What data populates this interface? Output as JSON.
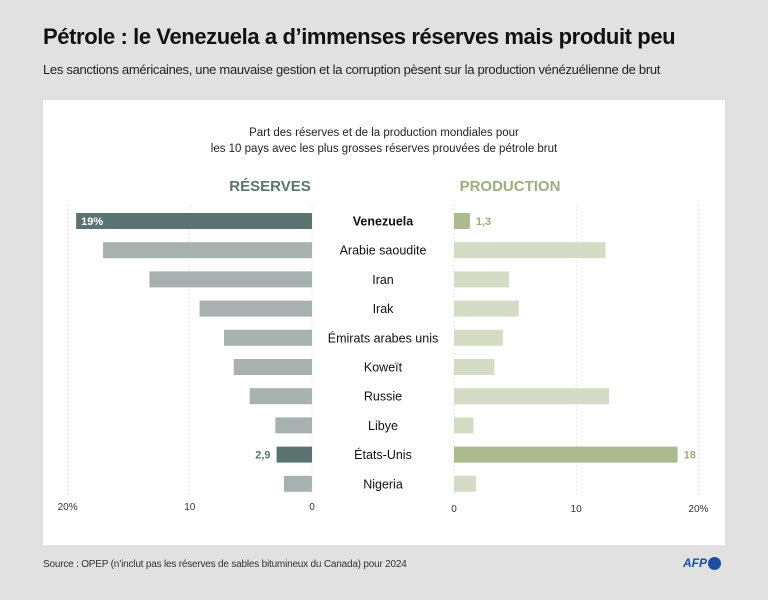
{
  "header": {
    "title": "Pétrole : le Venezuela a d’immenses réserves mais produit peu",
    "subtitle": "Les sanctions américaines, une mauvaise gestion et la corruption pèsent sur la production vénézuélienne de brut"
  },
  "footer": {
    "source": "Source : OPEP (n’inclut pas les réserves de sables bitumineux du Canada)  pour 2024",
    "logo": "AFP"
  },
  "colors": {
    "reserves_highlight": "#5b7471",
    "reserves_bar": "#a7b1af",
    "production_highlight": "#aabb90",
    "production_bar": "#d5dcc6",
    "reserves_label": "#5b7471",
    "production_label": "#9aae7c"
  },
  "chart_data": {
    "type": "bar",
    "title": "Part des réserves et de la production mondiales pour",
    "title_line2": "les 10 pays avec les plus grosses réserves prouvées de pétrole brut",
    "categories": [
      "Venezuela",
      "Arabie saoudite",
      "Iran",
      "Irak",
      "Émirats arabes unis",
      "Koweït",
      "Russie",
      "Libye",
      "États-Unis",
      "Nigeria"
    ],
    "highlighted": [
      "Venezuela",
      "États-Unis"
    ],
    "series": [
      {
        "name": "RÉSERVES",
        "values": [
          19.3,
          17.1,
          13.3,
          9.2,
          7.2,
          6.4,
          5.1,
          3.0,
          2.9,
          2.3
        ],
        "data_labels": {
          "Venezuela": "19%",
          "États-Unis": "2,9"
        }
      },
      {
        "name": "PRODUCTION",
        "values": [
          1.3,
          12.4,
          4.5,
          5.3,
          4.0,
          3.3,
          12.7,
          1.6,
          18.3,
          1.8
        ],
        "data_labels": {
          "Venezuela": "1,3",
          "États-Unis": "18"
        }
      }
    ],
    "xlim": [
      0,
      20
    ],
    "reserves_ticks": [
      "20%",
      "10",
      "0"
    ],
    "production_ticks": [
      "0",
      "10",
      "20%"
    ],
    "unit": "%"
  }
}
